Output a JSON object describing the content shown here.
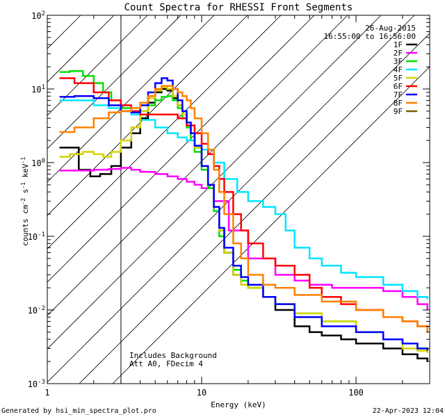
{
  "chart_data": {
    "type": "line",
    "title": "Count Spectra for RHESSI Front Segments",
    "xlabel": "Energy (keV)",
    "ylabel": "counts cm-2 s-1 keV-1",
    "xscale": "log",
    "yscale": "log",
    "xlim": [
      1.0,
      300.0
    ],
    "ylim": [
      0.001,
      100.0
    ],
    "x_ticks": [
      {
        "value": 1,
        "label": "1"
      },
      {
        "value": 10,
        "label": "10"
      },
      {
        "value": 100,
        "label": "100"
      }
    ],
    "y_ticks": [
      {
        "value": 0.001,
        "base": "10",
        "exp": "-3"
      },
      {
        "value": 0.01,
        "base": "10",
        "exp": "-2"
      },
      {
        "value": 0.1,
        "base": "10",
        "exp": "-1"
      },
      {
        "value": 1,
        "base": "10",
        "exp": "0"
      },
      {
        "value": 10,
        "base": "10",
        "exp": "1"
      },
      {
        "value": 100,
        "base": "10",
        "exp": "2"
      }
    ],
    "shaded_region": {
      "xmin": 1.0,
      "xmax": 3.0,
      "style": "diagonal hatching"
    },
    "legend_position": "top-right",
    "date": "26-Aug-2015",
    "time_range": "16:55:00 to 16:56:00",
    "annotation_lines": [
      "Includes Background",
      "Att A0, FDecim 4"
    ],
    "series": [
      {
        "name": "1F",
        "color": "#000000",
        "x": [
          1.2,
          1.4,
          1.6,
          1.9,
          2.2,
          2.6,
          3.0,
          3.5,
          4.0,
          4.5,
          5.0,
          5.5,
          6.0,
          6.5,
          7.0,
          7.5,
          8.0,
          8.5,
          9.0,
          10.0,
          11.0,
          12.0,
          13.0,
          14.0,
          16.0,
          18.0,
          20.0,
          25.0,
          30.0,
          40.0,
          50.0,
          60.0,
          80.0,
          100.0,
          150.0,
          200.0,
          250.0,
          290.0
        ],
        "y": [
          1.6,
          1.6,
          0.8,
          0.65,
          0.7,
          0.9,
          1.6,
          2.5,
          4.0,
          6.5,
          9.0,
          10.0,
          9.5,
          7.5,
          6.0,
          4.5,
          3.5,
          2.5,
          1.6,
          0.9,
          0.5,
          0.25,
          0.12,
          0.06,
          0.03,
          0.022,
          0.02,
          0.015,
          0.01,
          0.006,
          0.005,
          0.0045,
          0.004,
          0.0035,
          0.003,
          0.0025,
          0.0022,
          0.002
        ]
      },
      {
        "name": "2F",
        "color": "#ff00ff",
        "x": [
          1.2,
          1.5,
          2.0,
          2.5,
          3.0,
          3.5,
          4.0,
          5.0,
          6.0,
          7.0,
          8.0,
          9.0,
          10.0,
          12.0,
          15.0,
          20.0,
          30.0,
          40.0,
          50.0,
          70.0,
          100.0,
          150.0,
          200.0,
          250.0,
          290.0
        ],
        "y": [
          0.78,
          0.78,
          0.8,
          0.82,
          0.85,
          0.8,
          0.75,
          0.7,
          0.65,
          0.6,
          0.55,
          0.5,
          0.45,
          0.3,
          0.12,
          0.05,
          0.03,
          0.025,
          0.022,
          0.02,
          0.02,
          0.018,
          0.015,
          0.012,
          0.01
        ]
      },
      {
        "name": "3F",
        "color": "#00e000",
        "x": [
          1.2,
          1.4,
          1.7,
          2.0,
          2.3,
          2.6,
          3.0,
          3.5,
          4.0,
          4.5,
          5.0,
          5.5,
          6.0,
          6.5,
          7.0,
          7.5,
          8.0,
          8.5,
          9.0,
          10.0,
          11.0,
          12.0,
          13.0,
          14.0,
          16.0,
          18.0,
          20.0,
          25.0,
          30.0,
          40.0,
          60.0,
          100.0,
          150.0,
          200.0,
          250.0,
          290.0
        ],
        "y": [
          17.0,
          17.5,
          15.0,
          12.0,
          9.0,
          7.0,
          5.5,
          4.8,
          5.0,
          6.0,
          7.0,
          7.8,
          8.0,
          7.0,
          5.5,
          4.0,
          3.0,
          2.0,
          1.4,
          0.8,
          0.45,
          0.22,
          0.1,
          0.06,
          0.035,
          0.025,
          0.02,
          0.015,
          0.012,
          0.009,
          0.007,
          0.005,
          0.004,
          0.0035,
          0.003,
          0.003
        ]
      },
      {
        "name": "4F",
        "color": "#00e5ff",
        "x": [
          1.2,
          1.5,
          2.0,
          2.5,
          3.0,
          3.5,
          4.0,
          5.0,
          6.0,
          7.0,
          8.0,
          9.0,
          10.0,
          12.0,
          14.0,
          17.0,
          20.0,
          25.0,
          30.0,
          35.0,
          40.0,
          50.0,
          60.0,
          80.0,
          100.0,
          150.0,
          200.0,
          250.0,
          290.0
        ],
        "y": [
          7.0,
          7.0,
          6.0,
          5.5,
          5.0,
          4.5,
          3.8,
          3.0,
          2.5,
          2.2,
          2.0,
          1.7,
          1.5,
          1.0,
          0.6,
          0.4,
          0.3,
          0.25,
          0.2,
          0.12,
          0.07,
          0.05,
          0.04,
          0.032,
          0.028,
          0.022,
          0.018,
          0.015,
          0.014
        ]
      },
      {
        "name": "5F",
        "color": "#d4d400",
        "x": [
          1.2,
          1.4,
          1.7,
          2.0,
          2.3,
          2.6,
          3.0,
          3.5,
          4.0,
          4.5,
          5.0,
          5.5,
          6.0,
          6.5,
          7.0,
          7.5,
          8.0,
          8.5,
          9.0,
          10.0,
          11.0,
          12.0,
          13.0,
          14.0,
          16.0,
          18.0,
          20.0,
          25.0,
          30.0,
          40.0,
          60.0,
          100.0,
          150.0,
          200.0,
          250.0,
          290.0
        ],
        "y": [
          1.2,
          1.3,
          1.4,
          1.3,
          1.2,
          1.4,
          2.0,
          3.0,
          5.0,
          7.5,
          9.5,
          10.5,
          10.0,
          8.0,
          6.0,
          4.5,
          3.5,
          2.5,
          1.6,
          0.9,
          0.5,
          0.25,
          0.12,
          0.06,
          0.03,
          0.022,
          0.02,
          0.015,
          0.012,
          0.009,
          0.007,
          0.005,
          0.004,
          0.003,
          0.0028,
          0.0026
        ]
      },
      {
        "name": "6F",
        "color": "#ff0000",
        "x": [
          1.2,
          1.5,
          2.0,
          2.5,
          3.0,
          3.5,
          4.0,
          5.0,
          6.0,
          7.0,
          8.0,
          9.0,
          10.0,
          11.0,
          12.0,
          13.0,
          14.0,
          16.0,
          18.0,
          20.0,
          25.0,
          30.0,
          40.0,
          50.0,
          60.0,
          80.0,
          100.0,
          150.0,
          200.0,
          250.0,
          290.0
        ],
        "y": [
          14.0,
          12.0,
          9.0,
          7.0,
          6.0,
          5.0,
          4.5,
          4.5,
          4.5,
          4.0,
          3.2,
          2.5,
          1.8,
          1.3,
          0.9,
          0.6,
          0.4,
          0.2,
          0.12,
          0.08,
          0.05,
          0.04,
          0.03,
          0.02,
          0.015,
          0.012,
          0.01,
          0.008,
          0.007,
          0.006,
          0.005
        ]
      },
      {
        "name": "7F",
        "color": "#0000ff",
        "x": [
          1.2,
          1.5,
          2.0,
          2.5,
          3.0,
          3.5,
          4.0,
          4.5,
          5.0,
          5.5,
          6.0,
          6.5,
          7.0,
          7.5,
          8.0,
          8.5,
          9.0,
          10.0,
          11.0,
          12.0,
          13.0,
          14.0,
          16.0,
          18.0,
          20.0,
          25.0,
          30.0,
          40.0,
          60.0,
          100.0,
          150.0,
          200.0,
          250.0,
          290.0
        ],
        "y": [
          7.8,
          8.0,
          7.5,
          6.0,
          5.0,
          4.8,
          6.0,
          9.0,
          12.0,
          14.0,
          13.0,
          10.0,
          7.0,
          5.0,
          3.5,
          2.5,
          1.7,
          0.9,
          0.5,
          0.25,
          0.13,
          0.07,
          0.04,
          0.028,
          0.022,
          0.015,
          0.012,
          0.008,
          0.006,
          0.005,
          0.004,
          0.0035,
          0.003,
          0.0028
        ]
      },
      {
        "name": "8F",
        "color": "#ff8000",
        "x": [
          1.2,
          1.5,
          2.0,
          2.5,
          3.0,
          3.5,
          4.0,
          4.5,
          5.0,
          5.5,
          6.0,
          6.5,
          7.0,
          7.5,
          8.0,
          8.5,
          9.0,
          10.0,
          11.0,
          12.0,
          13.0,
          14.0,
          16.0,
          18.0,
          20.0,
          25.0,
          30.0,
          40.0,
          60.0,
          100.0,
          150.0,
          200.0,
          250.0,
          290.0
        ],
        "y": [
          2.6,
          3.0,
          4.0,
          4.8,
          5.0,
          5.5,
          6.5,
          8.0,
          10.0,
          11.0,
          11.0,
          10.0,
          9.0,
          8.0,
          7.0,
          5.5,
          4.0,
          2.5,
          1.5,
          0.8,
          0.4,
          0.2,
          0.08,
          0.05,
          0.03,
          0.022,
          0.02,
          0.016,
          0.013,
          0.01,
          0.008,
          0.007,
          0.006,
          0.005
        ]
      },
      {
        "name": "9F",
        "color": "#7a5c00",
        "x": [],
        "y": []
      }
    ]
  },
  "footer": {
    "left": "Generated by hsi_min_spectra_plot.pro",
    "right": "22-Apr-2023 12:04"
  }
}
